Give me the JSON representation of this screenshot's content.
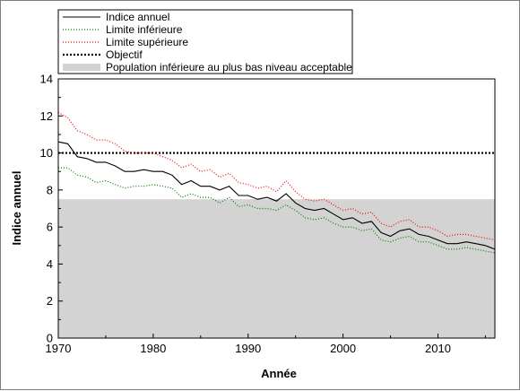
{
  "chart_data": {
    "type": "line",
    "xlabel": "Année",
    "ylabel": "Indice annuel",
    "xlim": [
      1970,
      2016
    ],
    "ylim": [
      0,
      14
    ],
    "x_ticks": [
      1970,
      1980,
      1990,
      2000,
      2010
    ],
    "y_ticks": [
      0,
      2,
      4,
      6,
      8,
      10,
      12,
      14
    ],
    "grid": false,
    "legend_position": "top-left, outside plot",
    "shaded_region": {
      "name": "Population inférieure au plus bas niveau acceptable",
      "y_from": 0,
      "y_to": 7.5,
      "color": "#d3d3d3"
    },
    "objective": {
      "name": "Objectif",
      "value": 10.0,
      "color": "#000000"
    },
    "x": [
      1970,
      1971,
      1972,
      1973,
      1974,
      1975,
      1976,
      1977,
      1978,
      1979,
      1980,
      1981,
      1982,
      1983,
      1984,
      1985,
      1986,
      1987,
      1988,
      1989,
      1990,
      1991,
      1992,
      1993,
      1994,
      1995,
      1996,
      1997,
      1998,
      1999,
      2000,
      2001,
      2002,
      2003,
      2004,
      2005,
      2006,
      2007,
      2008,
      2009,
      2010,
      2011,
      2012,
      2013,
      2014,
      2015,
      2016
    ],
    "series": [
      {
        "name": "Indice annuel",
        "color": "#000000",
        "style": "solid",
        "values": [
          10.6,
          10.5,
          9.8,
          9.7,
          9.5,
          9.5,
          9.3,
          9.0,
          9.0,
          9.1,
          9.0,
          9.0,
          8.8,
          8.3,
          8.5,
          8.2,
          8.2,
          8.0,
          8.2,
          7.7,
          7.7,
          7.5,
          7.6,
          7.4,
          7.8,
          7.3,
          7.0,
          6.9,
          7.0,
          6.7,
          6.4,
          6.5,
          6.2,
          6.3,
          5.7,
          5.5,
          5.8,
          5.9,
          5.6,
          5.5,
          5.3,
          5.1,
          5.1,
          5.2,
          5.1,
          5.0,
          4.8
        ]
      },
      {
        "name": "Limite inférieure",
        "color": "#008000",
        "style": "dotted",
        "values": [
          9.2,
          9.2,
          8.8,
          8.7,
          8.4,
          8.5,
          8.3,
          8.1,
          8.2,
          8.2,
          8.3,
          8.2,
          8.1,
          7.6,
          7.8,
          7.6,
          7.6,
          7.3,
          7.6,
          7.1,
          7.2,
          7.0,
          7.0,
          6.9,
          7.2,
          6.9,
          6.5,
          6.4,
          6.5,
          6.2,
          6.0,
          6.0,
          5.8,
          5.9,
          5.3,
          5.2,
          5.4,
          5.5,
          5.2,
          5.2,
          5.0,
          4.8,
          4.8,
          4.9,
          4.8,
          4.7,
          4.6
        ]
      },
      {
        "name": "Limite supérieure",
        "color": "#ff0000",
        "style": "dotted",
        "values": [
          12.2,
          11.9,
          11.2,
          11.0,
          10.7,
          10.7,
          10.5,
          10.1,
          10.0,
          10.0,
          10.0,
          9.8,
          9.6,
          9.2,
          9.4,
          9.0,
          9.1,
          8.7,
          8.9,
          8.4,
          8.3,
          8.1,
          8.2,
          7.9,
          8.5,
          7.9,
          7.5,
          7.4,
          7.5,
          7.2,
          6.9,
          7.0,
          6.7,
          6.8,
          6.2,
          6.0,
          6.3,
          6.4,
          6.0,
          6.0,
          5.8,
          5.5,
          5.6,
          5.6,
          5.5,
          5.4,
          5.3
        ]
      }
    ]
  }
}
